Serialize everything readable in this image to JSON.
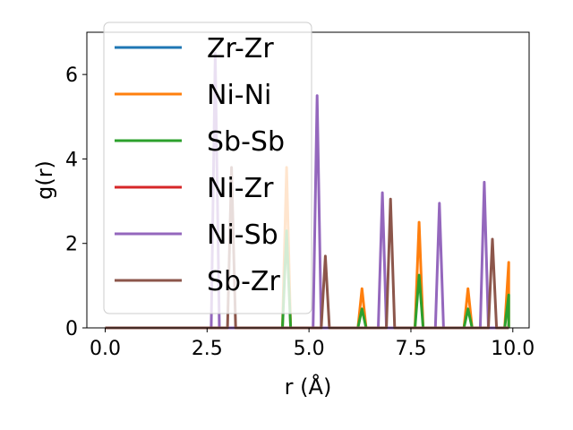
{
  "chart_data": {
    "type": "line",
    "xlabel": "r (Å)",
    "ylabel": "g(r)",
    "xlim": [
      -0.45,
      10.4
    ],
    "ylim": [
      0,
      7
    ],
    "xticks": [
      "0.0",
      "2.5",
      "5.0",
      "7.5",
      "10.0"
    ],
    "yticks": [
      "0",
      "2",
      "4",
      "6"
    ],
    "grid": false,
    "legend_position": "upper-left",
    "series": [
      {
        "name": "Zr-Zr",
        "color": "#1f77b4",
        "peaks": []
      },
      {
        "name": "Ni-Ni",
        "color": "#ff7f0e",
        "peaks": [
          [
            4.45,
            3.8
          ],
          [
            6.3,
            0.93
          ],
          [
            7.7,
            2.5
          ],
          [
            8.9,
            0.93
          ],
          [
            9.9,
            1.55
          ]
        ]
      },
      {
        "name": "Sb-Sb",
        "color": "#2ca02c",
        "peaks": [
          [
            4.45,
            2.3
          ],
          [
            6.3,
            0.45
          ],
          [
            7.7,
            1.25
          ],
          [
            8.9,
            0.45
          ],
          [
            9.9,
            0.78
          ]
        ]
      },
      {
        "name": "Ni-Zr",
        "color": "#d62728",
        "peaks": []
      },
      {
        "name": "Ni-Sb",
        "color": "#9467bd",
        "peaks": [
          [
            2.7,
            6.5
          ],
          [
            5.2,
            5.5
          ],
          [
            6.8,
            3.2
          ],
          [
            8.2,
            2.95
          ],
          [
            9.3,
            3.45
          ]
        ]
      },
      {
        "name": "Sb-Zr",
        "color": "#8c564b",
        "peaks": [
          [
            3.1,
            3.8
          ],
          [
            5.4,
            1.7
          ],
          [
            7.0,
            3.05
          ],
          [
            9.5,
            2.1
          ]
        ]
      }
    ]
  }
}
